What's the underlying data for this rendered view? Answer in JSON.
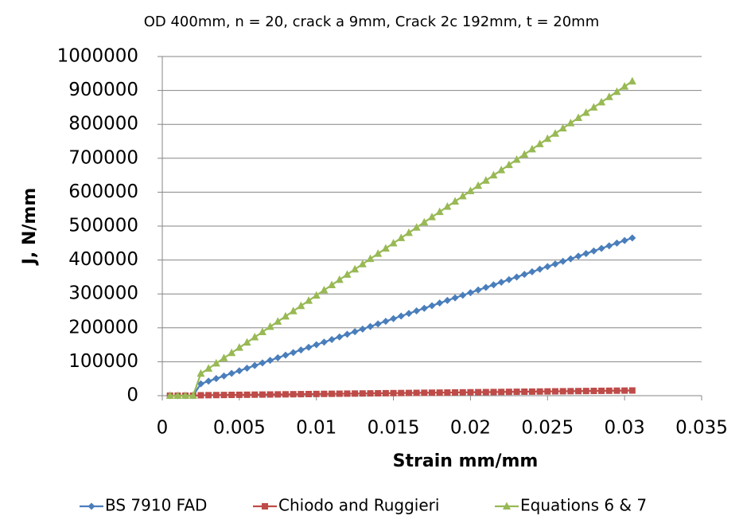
{
  "chart_data": {
    "type": "line",
    "title": "OD  400mm, n = 20, crack a  9mm, Crack 2c  192mm, t = 20mm",
    "x_label": "Strain mm/mm",
    "y_label": "J, N/mm",
    "x": [
      0.0005,
      0.001,
      0.0015,
      0.002,
      0.0025,
      0.003,
      0.0035,
      0.004,
      0.0045,
      0.005,
      0.0055,
      0.006,
      0.0065,
      0.007,
      0.0075,
      0.008,
      0.0085,
      0.009,
      0.0095,
      0.01,
      0.0105,
      0.011,
      0.0115,
      0.012,
      0.0125,
      0.013,
      0.0135,
      0.014,
      0.0145,
      0.015,
      0.0155,
      0.016,
      0.0165,
      0.017,
      0.0175,
      0.018,
      0.0185,
      0.019,
      0.0195,
      0.02,
      0.0205,
      0.021,
      0.0215,
      0.022,
      0.0225,
      0.023,
      0.0235,
      0.024,
      0.0245,
      0.025,
      0.0255,
      0.026,
      0.0265,
      0.027,
      0.0275,
      0.028,
      0.0285,
      0.029,
      0.0295,
      0.03,
      0.0305
    ],
    "series": [
      {
        "name": "BS 7910 FAD",
        "color": "#4a7ebb",
        "marker": "diamond",
        "values": [
          0,
          0,
          0,
          0,
          35000,
          42700,
          50400,
          58000,
          65700,
          73400,
          81100,
          88800,
          96400,
          104100,
          111800,
          119500,
          127200,
          134800,
          142500,
          150200,
          157900,
          165600,
          173200,
          180900,
          188600,
          196300,
          204000,
          211600,
          219300,
          227000,
          234700,
          242400,
          250000,
          257700,
          265400,
          273100,
          280800,
          288400,
          296100,
          303800,
          311500,
          319200,
          326800,
          334500,
          342200,
          349900,
          357600,
          365200,
          372900,
          380600,
          388300,
          396000,
          403600,
          411300,
          419000,
          426700,
          434400,
          442000,
          449700,
          457400,
          465100
        ]
      },
      {
        "name": "Chiodo and Ruggieri",
        "color": "#be4b48",
        "marker": "square",
        "values": [
          0,
          0,
          0,
          0,
          1250,
          1500,
          1750,
          2000,
          2250,
          2500,
          2750,
          3000,
          3250,
          3500,
          3750,
          4000,
          4250,
          4500,
          4750,
          5000,
          5250,
          5500,
          5750,
          6000,
          6250,
          6500,
          6750,
          7000,
          7250,
          7500,
          7750,
          8000,
          8250,
          8500,
          8750,
          9000,
          9250,
          9500,
          9750,
          10000,
          10250,
          10500,
          10750,
          11000,
          11250,
          11500,
          11750,
          12000,
          12250,
          12500,
          12750,
          13000,
          13250,
          13500,
          13750,
          14000,
          14250,
          14500,
          14750,
          15000,
          15250
        ]
      },
      {
        "name": "Equations 6 & 7",
        "color": "#98b954",
        "marker": "triangle",
        "values": [
          0,
          0,
          0,
          0,
          65000,
          80000,
          95400,
          110800,
          126200,
          141600,
          157000,
          172400,
          187800,
          203200,
          218600,
          234000,
          249400,
          264800,
          280200,
          295600,
          311000,
          326400,
          341800,
          357200,
          372600,
          388000,
          403400,
          418800,
          434200,
          449600,
          465000,
          480400,
          495800,
          511200,
          526600,
          542000,
          557400,
          572800,
          588200,
          603600,
          619000,
          634400,
          649800,
          665200,
          680600,
          696000,
          711400,
          726800,
          742200,
          757600,
          773000,
          788400,
          803800,
          819200,
          834600,
          850000,
          865400,
          880800,
          896200,
          911600,
          927000
        ]
      }
    ],
    "xlim": [
      0,
      0.035
    ],
    "xticks": [
      0,
      0.005,
      0.01,
      0.015,
      0.02,
      0.025,
      0.03,
      0.035
    ],
    "ylim": [
      0,
      1000000
    ],
    "yticks": [
      0,
      100000,
      200000,
      300000,
      400000,
      500000,
      600000,
      700000,
      800000,
      900000,
      1000000
    ],
    "grid": true,
    "legend": "bottom"
  }
}
